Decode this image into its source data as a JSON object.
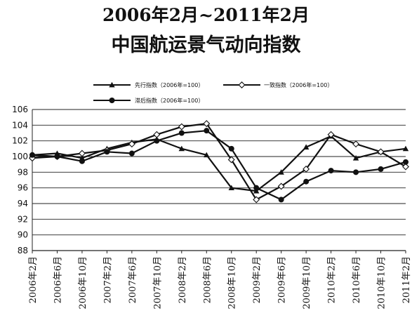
{
  "titles": {
    "line1": "2006年2月~2011年2月",
    "line2": "中国航运景气动向指数"
  },
  "chart_data": {
    "type": "line",
    "title": "2006年2月~2011年2月 中国航运景气动向指数",
    "ylim": [
      88,
      106
    ],
    "yticks": [
      88,
      90,
      92,
      94,
      96,
      98,
      100,
      102,
      104,
      106
    ],
    "grid": true,
    "legend_position": "top",
    "xtick_labels": [
      "2006年2月",
      "2006年6月",
      "2006年10月",
      "2007年2月",
      "2007年6月",
      "2007年10月",
      "2008年2月",
      "2008年6月",
      "2008年10月",
      "2009年2月",
      "2009年6月",
      "2009年10月",
      "2010年2月",
      "2010年6月",
      "2010年10月",
      "2011年2月"
    ],
    "x": [
      "2006-02",
      "2006-06",
      "2006-10",
      "2007-02",
      "2007-06",
      "2007-10",
      "2008-02",
      "2008-06",
      "2008-10",
      "2009-02",
      "2009-06",
      "2009-10",
      "2010-02",
      "2010-06",
      "2010-10",
      "2011-02"
    ],
    "series": [
      {
        "name": "先行指数（2006年=100）",
        "marker": "triangle",
        "values": [
          100.2,
          100.4,
          99.8,
          101.0,
          101.8,
          102.2,
          101.0,
          100.2,
          96.0,
          95.6,
          98.0,
          101.2,
          102.6,
          99.8,
          100.6,
          101.0
        ]
      },
      {
        "name": "一致指数（2006年=100）",
        "marker": "diamond",
        "values": [
          99.8,
          100.0,
          100.4,
          100.8,
          101.6,
          102.8,
          103.8,
          104.2,
          99.6,
          94.5,
          96.2,
          98.4,
          102.8,
          101.6,
          100.6,
          98.7
        ]
      },
      {
        "name": "滞后指数（2006年=100）",
        "marker": "circle",
        "values": [
          100.2,
          100.0,
          99.4,
          100.6,
          100.4,
          102.0,
          103.0,
          103.3,
          101.0,
          96.0,
          94.5,
          96.8,
          98.2,
          98.0,
          98.4,
          99.3
        ]
      }
    ]
  }
}
